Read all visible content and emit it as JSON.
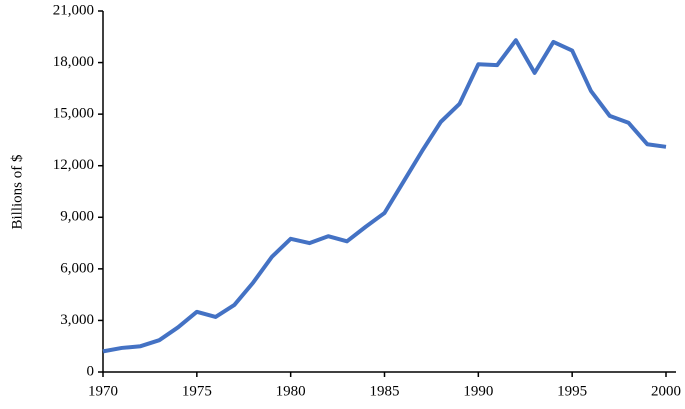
{
  "chart_data": {
    "type": "line",
    "y_label": "Billions of $",
    "x": [
      1970,
      1971,
      1972,
      1973,
      1974,
      1975,
      1976,
      1977,
      1978,
      1979,
      1980,
      1981,
      1982,
      1983,
      1984,
      1985,
      1986,
      1987,
      1988,
      1989,
      1990,
      1991,
      1992,
      1993,
      1994,
      1995,
      1996,
      1997,
      1998,
      1999,
      2000
    ],
    "series": [
      {
        "color": "#4472c4",
        "values": [
          1200,
          1400,
          1500,
          1850,
          2600,
          3500,
          3200,
          3900,
          5200,
          6700,
          7750,
          7500,
          7900,
          7600,
          8450,
          9250,
          11050,
          12850,
          14550,
          15600,
          17900,
          17850,
          19300,
          17400,
          19200,
          18700,
          16350,
          14900,
          14500,
          13250,
          13100
        ]
      }
    ],
    "xlim": [
      1970,
      2000
    ],
    "xticks": [
      1970,
      1975,
      1980,
      1985,
      1990,
      1995,
      2000
    ],
    "ylim": [
      0,
      21000
    ],
    "yticks": [
      0,
      {
        "value": 3000,
        "label": "3,000"
      },
      {
        "value": 6000,
        "label": "6,000"
      },
      {
        "value": 9000,
        "label": "9,000"
      },
      {
        "value": 12000,
        "label": "12,000"
      },
      {
        "value": 15000,
        "label": "15,000"
      },
      {
        "value": 18000,
        "label": "18,000"
      },
      {
        "value": 21000,
        "label": "21,000"
      }
    ],
    "grid": false
  }
}
